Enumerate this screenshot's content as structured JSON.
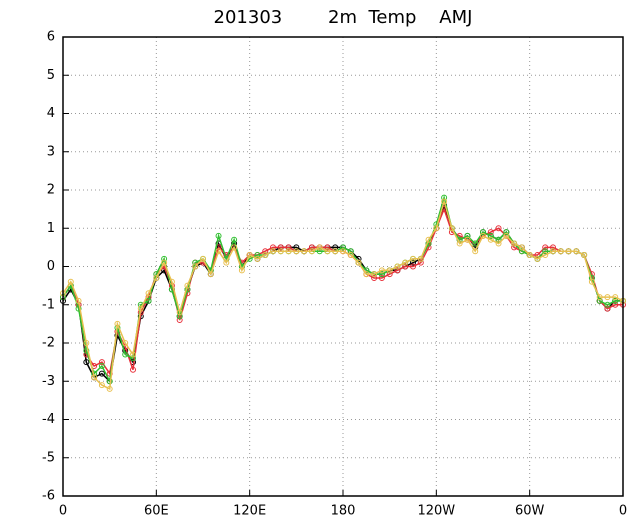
{
  "chart_data": {
    "type": "line",
    "title": "201303        2m  Temp    AMJ",
    "x": [
      0,
      5,
      10,
      15,
      20,
      25,
      30,
      35,
      40,
      45,
      50,
      55,
      60,
      65,
      70,
      75,
      80,
      85,
      90,
      95,
      100,
      105,
      110,
      115,
      120,
      125,
      130,
      135,
      140,
      145,
      150,
      155,
      160,
      165,
      170,
      175,
      180,
      185,
      190,
      195,
      200,
      205,
      210,
      215,
      220,
      225,
      230,
      235,
      240,
      245,
      250,
      255,
      260,
      265,
      270,
      275,
      280,
      285,
      290,
      295,
      300,
      305,
      310,
      315,
      320,
      325,
      330,
      335,
      340,
      345,
      350,
      355,
      360
    ],
    "series": [
      {
        "color": "#000000",
        "values": [
          -0.9,
          -0.6,
          -1.0,
          -2.5,
          -2.9,
          -2.8,
          -3.0,
          -1.8,
          -2.2,
          -2.5,
          -1.3,
          -0.9,
          -0.3,
          -0.1,
          -0.6,
          -1.3,
          -0.6,
          0.0,
          0.1,
          -0.2,
          0.6,
          0.2,
          0.6,
          0.0,
          0.3,
          0.2,
          0.3,
          0.4,
          0.5,
          0.5,
          0.5,
          0.4,
          0.5,
          0.5,
          0.5,
          0.5,
          0.5,
          0.4,
          0.2,
          -0.1,
          -0.2,
          -0.2,
          -0.1,
          -0.1,
          0.0,
          0.1,
          0.2,
          0.6,
          1.0,
          1.6,
          1.0,
          0.7,
          0.8,
          0.5,
          0.9,
          0.8,
          0.7,
          0.9,
          0.6,
          0.5,
          0.3,
          0.2,
          0.4,
          0.4,
          0.4,
          0.4,
          0.4,
          0.3,
          -0.3,
          -0.9,
          -1.1,
          -0.9,
          -0.9
        ]
      },
      {
        "color": "#e8303a",
        "values": [
          -0.8,
          -0.5,
          -1.0,
          -2.3,
          -2.6,
          -2.5,
          -2.8,
          -1.7,
          -2.1,
          -2.7,
          -1.2,
          -0.8,
          -0.2,
          0.0,
          -0.5,
          -1.4,
          -0.7,
          0.1,
          0.1,
          -0.1,
          0.5,
          0.3,
          0.5,
          0.1,
          0.3,
          0.3,
          0.4,
          0.5,
          0.5,
          0.5,
          0.4,
          0.4,
          0.5,
          0.5,
          0.5,
          0.4,
          0.4,
          0.3,
          0.1,
          -0.2,
          -0.3,
          -0.3,
          -0.2,
          -0.1,
          0.0,
          0.0,
          0.1,
          0.5,
          1.0,
          1.5,
          0.9,
          0.8,
          0.7,
          0.6,
          0.8,
          0.9,
          1.0,
          0.8,
          0.5,
          0.4,
          0.3,
          0.3,
          0.5,
          0.5,
          0.4,
          0.4,
          0.4,
          0.3,
          -0.2,
          -0.9,
          -1.1,
          -1.0,
          -1.0
        ]
      },
      {
        "color": "#30c030",
        "values": [
          -0.8,
          -0.5,
          -1.1,
          -2.2,
          -2.8,
          -2.6,
          -3.0,
          -1.6,
          -2.3,
          -2.4,
          -1.0,
          -0.9,
          -0.2,
          0.2,
          -0.6,
          -1.3,
          -0.6,
          0.1,
          0.2,
          -0.1,
          0.8,
          0.2,
          0.7,
          0.0,
          0.2,
          0.3,
          0.3,
          0.4,
          0.4,
          0.4,
          0.4,
          0.4,
          0.4,
          0.4,
          0.4,
          0.4,
          0.5,
          0.4,
          0.1,
          -0.1,
          -0.2,
          -0.2,
          -0.1,
          0.0,
          0.1,
          0.2,
          0.2,
          0.6,
          1.1,
          1.8,
          1.0,
          0.7,
          0.8,
          0.6,
          0.9,
          0.8,
          0.7,
          0.9,
          0.6,
          0.4,
          0.3,
          0.2,
          0.4,
          0.4,
          0.4,
          0.4,
          0.4,
          0.3,
          -0.3,
          -0.9,
          -1.0,
          -0.9,
          -0.9
        ]
      },
      {
        "color": "#e8c050",
        "values": [
          -0.7,
          -0.4,
          -0.9,
          -2.0,
          -2.9,
          -3.1,
          -3.2,
          -1.5,
          -2.0,
          -2.3,
          -1.1,
          -0.7,
          -0.3,
          0.1,
          -0.4,
          -1.2,
          -0.5,
          0.0,
          0.2,
          -0.2,
          0.4,
          0.1,
          0.5,
          -0.1,
          0.3,
          0.2,
          0.3,
          0.4,
          0.4,
          0.4,
          0.4,
          0.4,
          0.4,
          0.5,
          0.4,
          0.4,
          0.4,
          0.3,
          0.1,
          -0.2,
          -0.2,
          -0.1,
          -0.1,
          0.0,
          0.1,
          0.2,
          0.2,
          0.7,
          1.0,
          1.7,
          1.0,
          0.6,
          0.7,
          0.4,
          0.8,
          0.7,
          0.6,
          0.8,
          0.6,
          0.5,
          0.3,
          0.2,
          0.3,
          0.4,
          0.4,
          0.4,
          0.4,
          0.3,
          -0.4,
          -0.8,
          -0.8,
          -0.8,
          -0.9
        ]
      }
    ],
    "xlim": [
      0,
      360
    ],
    "xticks": [
      0,
      {
        "value": 60,
        "label": "60E"
      },
      {
        "value": 120,
        "label": "120E"
      },
      180,
      {
        "value": 240,
        "label": "120W"
      },
      {
        "value": 300,
        "label": "60W"
      },
      {
        "value": 360,
        "label": "0"
      }
    ],
    "ylim": [
      -6,
      6
    ],
    "yticks": [
      -6,
      -5,
      -4,
      -3,
      -2,
      -1,
      0,
      1,
      2,
      3,
      4,
      5,
      6
    ],
    "grid": true
  }
}
